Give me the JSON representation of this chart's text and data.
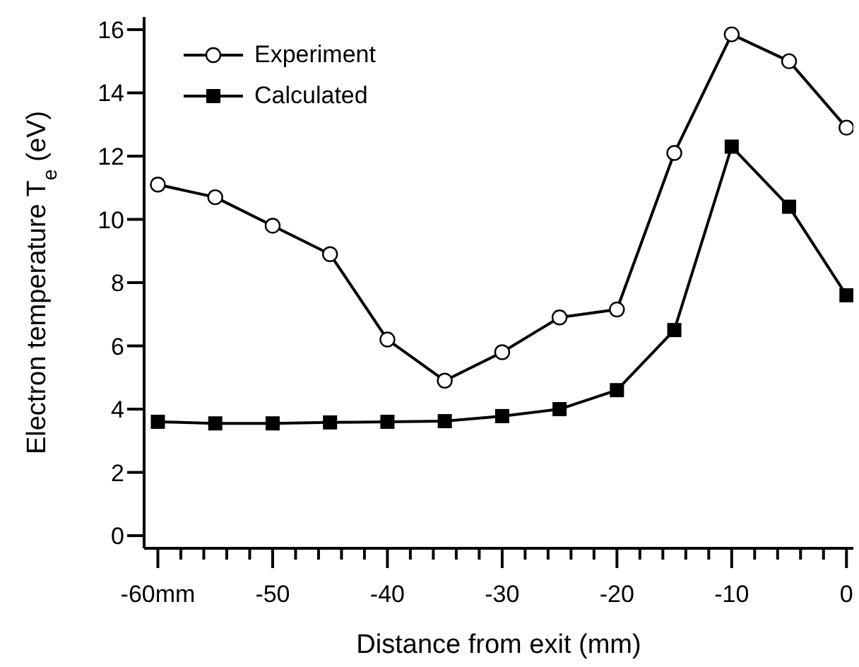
{
  "chart_data": {
    "type": "line",
    "xlabel": "Distance from exit (mm)",
    "ylabel": "Electron temperature T$_{e}$ (eV)",
    "x": [
      -60,
      -55,
      -50,
      -45,
      -40,
      -35,
      -30,
      -25,
      -20,
      -15,
      -10,
      -5,
      0
    ],
    "series": [
      {
        "name": "Experiment",
        "color": "#000000",
        "marker": "circle",
        "values": [
          11.1,
          10.7,
          9.8,
          8.9,
          6.2,
          4.9,
          5.8,
          6.9,
          7.15,
          12.1,
          15.85,
          15.0,
          12.9
        ]
      },
      {
        "name": "Calculated",
        "color": "#000000",
        "marker": "square",
        "values": [
          3.6,
          3.55,
          3.55,
          3.58,
          3.6,
          3.62,
          3.78,
          4.0,
          4.6,
          6.5,
          12.3,
          10.4,
          7.6
        ]
      }
    ],
    "xlim": [
      -61.2,
      0.6
    ],
    "xticks": [
      {
        "value": -60,
        "label": "-60mm"
      },
      {
        "value": -58,
        "label": null
      },
      {
        "value": -56,
        "label": null
      },
      {
        "value": -54,
        "label": null
      },
      {
        "value": -52,
        "label": null
      },
      -50,
      {
        "value": -48,
        "label": null
      },
      {
        "value": -46,
        "label": null
      },
      {
        "value": -44,
        "label": null
      },
      {
        "value": -42,
        "label": null
      },
      -40,
      {
        "value": -38,
        "label": null
      },
      {
        "value": -36,
        "label": null
      },
      {
        "value": -34,
        "label": null
      },
      {
        "value": -32,
        "label": null
      },
      -30,
      {
        "value": -28,
        "label": null
      },
      {
        "value": -26,
        "label": null
      },
      {
        "value": -24,
        "label": null
      },
      {
        "value": -22,
        "label": null
      },
      -20,
      {
        "value": -18,
        "label": null
      },
      {
        "value": -16,
        "label": null
      },
      {
        "value": -14,
        "label": null
      },
      {
        "value": -12,
        "label": null
      },
      -10,
      {
        "value": -8,
        "label": null
      },
      {
        "value": -6,
        "label": null
      },
      {
        "value": -4,
        "label": null
      },
      {
        "value": -2,
        "label": null
      },
      0
    ],
    "ylim": [
      -0.4,
      16.4
    ],
    "yticks": [
      0,
      2,
      4,
      6,
      8,
      10,
      12,
      14,
      16
    ],
    "grid": false,
    "legend": "top left",
    "line_style": "solid"
  }
}
